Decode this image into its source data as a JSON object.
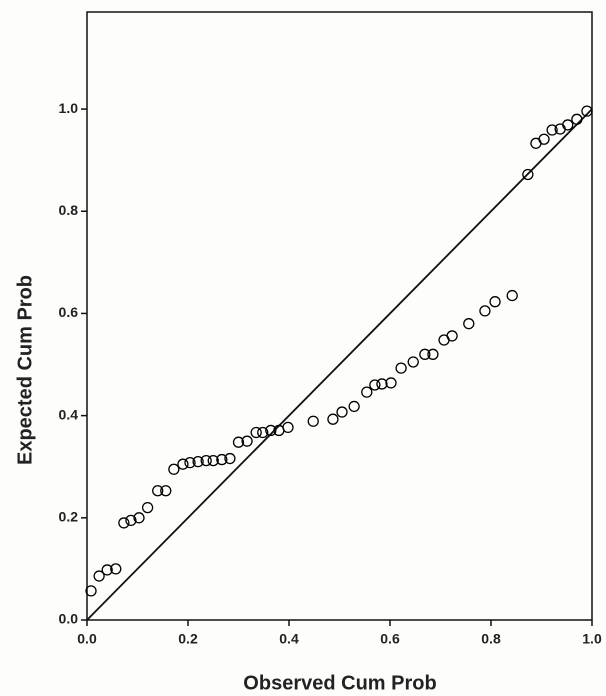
{
  "chart_data": {
    "type": "scatter",
    "x_label": "Observed Cum Prob",
    "y_label": "Expected Cum Prob",
    "x": [
      0.008,
      0.024,
      0.04,
      0.057,
      0.073,
      0.087,
      0.103,
      0.12,
      0.14,
      0.156,
      0.172,
      0.19,
      0.204,
      0.22,
      0.236,
      0.25,
      0.267,
      0.283,
      0.3,
      0.317,
      0.335,
      0.348,
      0.364,
      0.38,
      0.398,
      0.448,
      0.487,
      0.505,
      0.529,
      0.554,
      0.57,
      0.584,
      0.602,
      0.622,
      0.646,
      0.669,
      0.685,
      0.707,
      0.723,
      0.756,
      0.788,
      0.808,
      0.842,
      0.873,
      0.889,
      0.905,
      0.921,
      0.937,
      0.952,
      0.97,
      0.99
    ],
    "values": [
      0.057,
      0.086,
      0.098,
      0.1,
      0.19,
      0.195,
      0.2,
      0.22,
      0.253,
      0.253,
      0.295,
      0.305,
      0.308,
      0.31,
      0.312,
      0.312,
      0.314,
      0.316,
      0.348,
      0.35,
      0.367,
      0.367,
      0.371,
      0.371,
      0.377,
      0.389,
      0.393,
      0.407,
      0.418,
      0.446,
      0.46,
      0.462,
      0.464,
      0.493,
      0.505,
      0.52,
      0.52,
      0.548,
      0.556,
      0.58,
      0.605,
      0.623,
      0.635,
      0.872,
      0.933,
      0.941,
      0.959,
      0.961,
      0.969,
      0.98,
      0.996
    ],
    "color": "#000000",
    "xlim": [
      0,
      1
    ],
    "ylim": [
      0,
      1.19
    ],
    "xticks": [
      {
        "value": 0,
        "label": "0.0"
      },
      {
        "value": 0.2,
        "label": "0.2"
      },
      {
        "value": 0.4,
        "label": "0.4"
      },
      {
        "value": 0.6,
        "label": "0.6"
      },
      {
        "value": 0.8,
        "label": "0.8"
      },
      {
        "value": 1,
        "label": "1.0"
      }
    ],
    "yticks": [
      {
        "value": 0,
        "label": "0.0"
      },
      {
        "value": 0.2,
        "label": "0.2"
      },
      {
        "value": 0.4,
        "label": "0.4"
      },
      {
        "value": 0.6,
        "label": "0.6"
      },
      {
        "value": 0.8,
        "label": "0.8"
      },
      {
        "value": 1,
        "label": "1.0"
      }
    ],
    "reference_line": true
  }
}
